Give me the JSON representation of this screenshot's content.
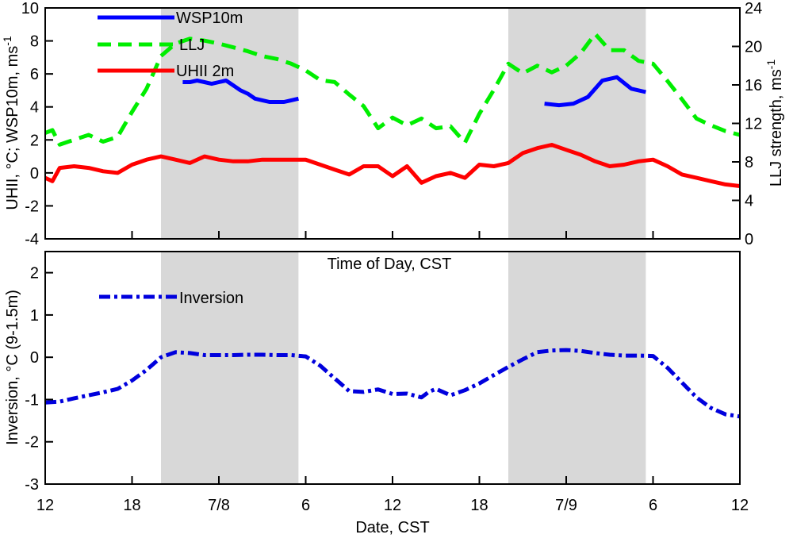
{
  "chart_data": [
    {
      "type": "line",
      "panel": "top",
      "title": "",
      "xlabel": "Time of Day, CST",
      "ylabel": "UHII, °C; WSP10m, ms",
      "ylabel_sup": "-1",
      "y2label": "LLJ strength, ms",
      "y2label_sup": "-1",
      "xlim": [
        12,
        60
      ],
      "ylim": [
        -4,
        10
      ],
      "y2lim": [
        0,
        24
      ],
      "yticks": [
        "-4",
        "-2",
        "0",
        "2",
        "4",
        "6",
        "8",
        "10"
      ],
      "y2ticks": [
        "0",
        "4",
        "8",
        "12",
        "16",
        "20",
        "24"
      ],
      "shaded_spans": [
        [
          20,
          29.5
        ],
        [
          44,
          53.5
        ]
      ],
      "legend_placement": "top-left",
      "series": [
        {
          "name": "WSP10m",
          "axis": "left",
          "color": "#0000ff",
          "dash": "solid",
          "x": [
            21.5,
            22,
            22.5,
            23,
            23.5,
            24,
            24.5,
            25,
            25.5,
            26,
            26.5,
            27,
            27.5,
            28,
            28.5,
            29,
            29.5
          ],
          "y": [
            5.5,
            5.5,
            5.6,
            5.5,
            5.4,
            5.5,
            5.6,
            5.3,
            5.0,
            4.8,
            4.5,
            4.4,
            4.3,
            4.3,
            4.3,
            4.4,
            4.5
          ]
        },
        {
          "name": "WSP10m",
          "axis": "left",
          "color": "#0000ff",
          "dash": "solid",
          "x": [
            46.5,
            47.5,
            48.5,
            49.5,
            50.5,
            51.5,
            52.5,
            53.5
          ],
          "y": [
            4.2,
            4.1,
            4.2,
            4.6,
            5.6,
            5.8,
            5.1,
            4.9
          ]
        },
        {
          "name": "LLJ",
          "axis": "right",
          "color": "#00ee00",
          "dash": "dashed",
          "x": [
            12,
            12.5,
            13,
            14,
            15,
            16,
            17,
            18,
            19,
            20,
            21,
            22,
            23,
            24,
            25,
            26,
            27,
            28,
            29,
            30,
            31,
            32,
            33,
            34,
            35,
            36,
            37,
            38,
            39,
            40,
            41,
            42,
            43,
            44,
            45,
            46,
            47,
            48,
            49,
            50,
            51,
            52,
            53,
            54,
            55,
            56,
            57,
            58,
            59,
            60
          ],
          "y": [
            11.0,
            11.3,
            9.8,
            10.3,
            10.8,
            10.1,
            10.6,
            13.2,
            15.6,
            19.0,
            20.3,
            20.8,
            20.6,
            20.3,
            19.9,
            19.5,
            19.0,
            18.7,
            18.2,
            17.5,
            16.5,
            16.3,
            15.0,
            13.8,
            11.5,
            12.6,
            11.8,
            12.5,
            11.5,
            11.7,
            10.0,
            13.0,
            15.5,
            18.2,
            17.2,
            18.0,
            17.3,
            18.0,
            19.3,
            21.3,
            19.6,
            19.6,
            18.5,
            18.2,
            16.4,
            14.5,
            12.5,
            11.8,
            11.2,
            10.8
          ]
        },
        {
          "name": "UHII 2m",
          "axis": "left",
          "color": "#ff0000",
          "dash": "solid",
          "x": [
            12,
            12.5,
            13,
            14,
            15,
            16,
            17,
            18,
            19,
            20,
            21,
            22,
            23,
            24,
            25,
            26,
            27,
            28,
            29,
            30,
            31,
            32,
            33,
            34,
            35,
            36,
            37,
            38,
            39,
            40,
            41,
            42,
            43,
            44,
            45,
            46,
            47,
            48,
            49,
            50,
            51,
            52,
            53,
            54,
            55,
            56,
            57,
            58,
            59,
            60
          ],
          "y": [
            -0.3,
            -0.5,
            0.3,
            0.4,
            0.3,
            0.1,
            0.0,
            0.5,
            0.8,
            1.0,
            0.8,
            0.6,
            1.0,
            0.8,
            0.7,
            0.7,
            0.8,
            0.8,
            0.8,
            0.8,
            0.5,
            0.2,
            -0.1,
            0.4,
            0.4,
            -0.2,
            0.4,
            -0.6,
            -0.2,
            0.0,
            -0.3,
            0.5,
            0.4,
            0.6,
            1.2,
            1.5,
            1.7,
            1.4,
            1.1,
            0.7,
            0.4,
            0.5,
            0.7,
            0.8,
            0.4,
            -0.1,
            -0.3,
            -0.5,
            -0.7,
            -0.8
          ]
        }
      ]
    },
    {
      "type": "line",
      "panel": "bottom",
      "title": "",
      "xlabel": "Date, CST",
      "ylabel": "Inversion, °C (9-1.5m)",
      "xlim": [
        12,
        60
      ],
      "ylim": [
        -3,
        2.5
      ],
      "yticks": [
        "-3",
        "-2",
        "-1",
        "0",
        "1",
        "2"
      ],
      "xticks": [
        {
          "x": 12,
          "label": "12"
        },
        {
          "x": 18,
          "label": "18"
        },
        {
          "x": 24,
          "label": "7/8"
        },
        {
          "x": 30,
          "label": "6"
        },
        {
          "x": 36,
          "label": "12"
        },
        {
          "x": 42,
          "label": "18"
        },
        {
          "x": 48,
          "label": "7/9"
        },
        {
          "x": 54,
          "label": "6"
        },
        {
          "x": 60,
          "label": "12"
        }
      ],
      "shaded_spans": [
        [
          20,
          29.5
        ],
        [
          44,
          53.5
        ]
      ],
      "legend_placement": "top-left",
      "series": [
        {
          "name": "Inversion",
          "color": "#0000dd",
          "dash": "dashdot",
          "x": [
            12,
            13,
            14,
            15,
            16,
            17,
            18,
            19,
            20,
            21,
            22,
            23,
            24,
            25,
            26,
            27,
            28,
            29,
            30,
            31,
            32,
            33,
            34,
            35,
            36,
            37,
            38,
            38.5,
            39,
            40,
            41,
            42,
            43,
            44,
            45,
            46,
            47,
            48,
            49,
            50,
            51,
            52,
            53,
            54,
            55,
            56,
            57,
            58,
            59,
            60
          ],
          "y": [
            -1.07,
            -1.05,
            -0.97,
            -0.9,
            -0.83,
            -0.75,
            -0.55,
            -0.3,
            0.0,
            0.12,
            0.1,
            0.05,
            0.05,
            0.05,
            0.06,
            0.06,
            0.05,
            0.05,
            0.02,
            -0.2,
            -0.5,
            -0.8,
            -0.82,
            -0.76,
            -0.87,
            -0.86,
            -0.95,
            -0.82,
            -0.75,
            -0.9,
            -0.78,
            -0.62,
            -0.42,
            -0.23,
            -0.05,
            0.12,
            0.16,
            0.17,
            0.15,
            0.1,
            0.06,
            0.04,
            0.04,
            0.03,
            -0.25,
            -0.6,
            -0.95,
            -1.2,
            -1.35,
            -1.4
          ]
        }
      ]
    }
  ]
}
